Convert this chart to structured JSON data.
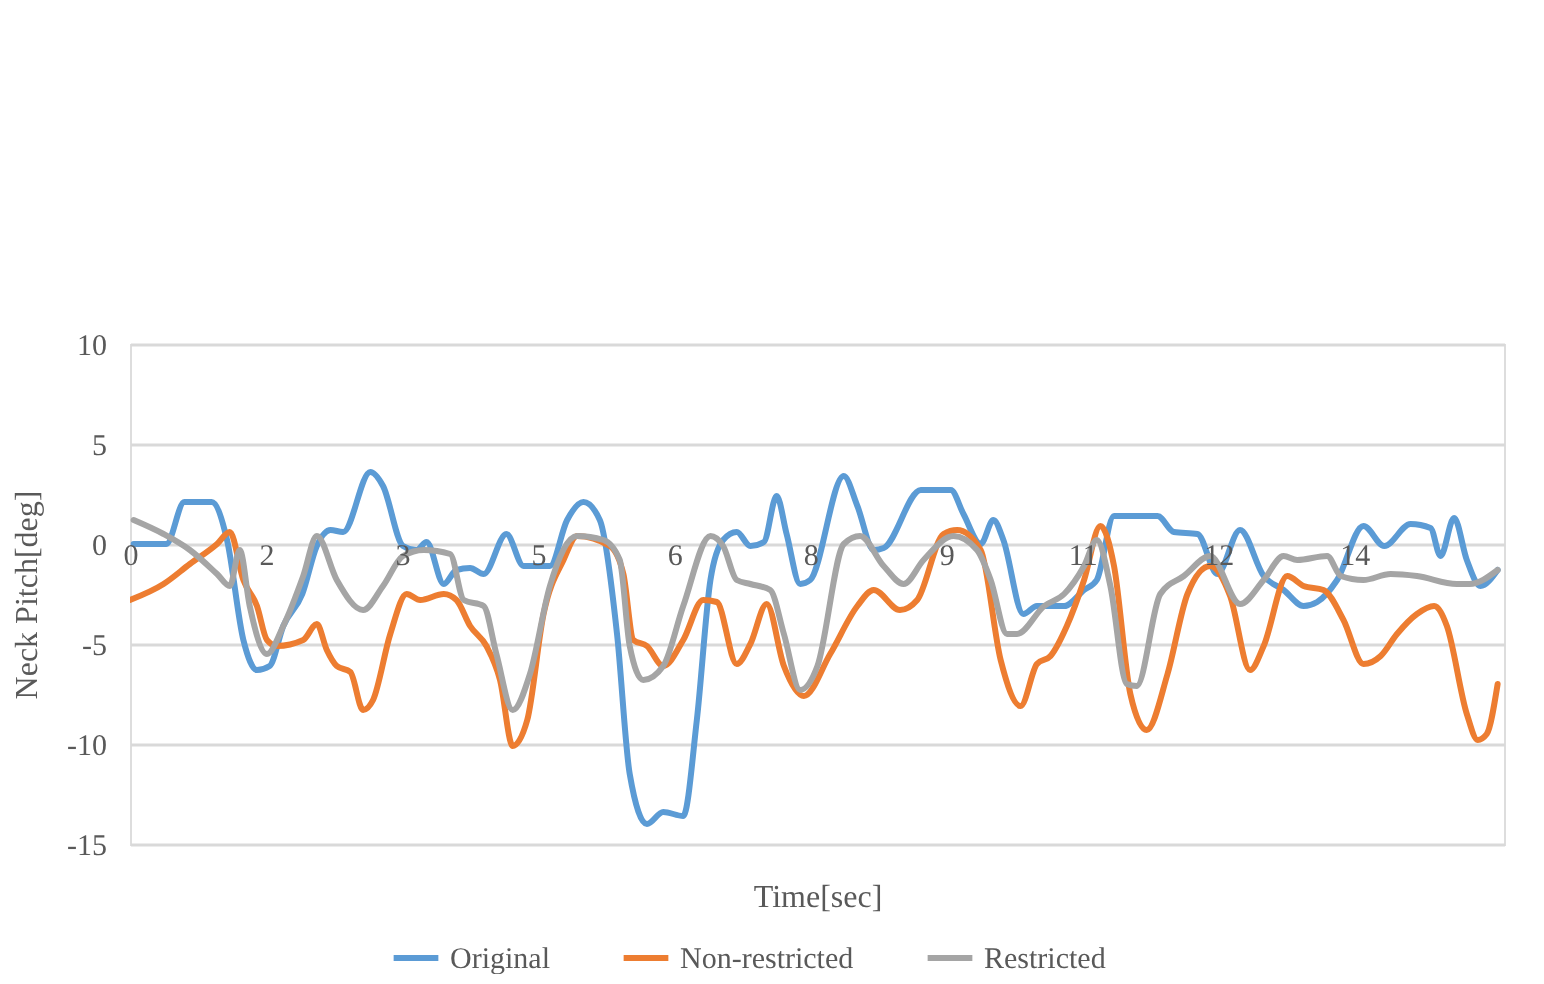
{
  "chart_data": {
    "type": "line",
    "xlabel": "Time[sec]",
    "ylabel": "Neck Pitch[deg]",
    "xlim": [
      0,
      15.15
    ],
    "ylim": [
      -15,
      10
    ],
    "xticks": [
      0,
      {
        "value": 1.5,
        "label": "2"
      },
      3,
      {
        "value": 4.5,
        "label": "5"
      },
      6,
      {
        "value": 7.5,
        "label": "8"
      },
      9,
      {
        "value": 10.5,
        "label": "11"
      },
      12,
      {
        "value": 13.5,
        "label": "14"
      }
    ],
    "yticks": [
      -15,
      -10,
      -5,
      0,
      5,
      10
    ],
    "grid": "y",
    "legend": "bottom",
    "line_style": "solid",
    "marker": "none",
    "series": [
      {
        "name": "Original",
        "color": "#5b9bd5",
        "x": [
          0.04,
          0.4,
          0.6,
          0.9,
          1.07,
          1.25,
          1.4,
          1.54,
          1.69,
          1.9,
          2.06,
          2.21,
          2.35,
          2.65,
          2.79,
          3.01,
          3.16,
          3.27,
          3.46,
          3.6,
          3.75,
          3.9,
          4.15,
          4.34,
          4.63,
          4.82,
          5.0,
          5.18,
          5.37,
          5.51,
          5.7,
          5.88,
          6.1,
          6.25,
          6.4,
          6.54,
          6.69,
          6.84,
          6.99,
          7.13,
          7.24,
          7.39,
          7.5,
          7.87,
          8.02,
          8.2,
          8.31,
          8.72,
          9.05,
          9.19,
          9.38,
          9.52,
          9.63,
          9.85,
          10.0,
          10.3,
          10.52,
          10.66,
          10.85,
          11.33,
          11.51,
          11.77,
          11.99,
          12.24,
          12.5,
          12.72,
          12.94,
          13.09,
          13.31,
          13.6,
          13.83,
          14.12,
          14.34,
          14.45,
          14.6,
          14.74,
          14.89,
          15.08
        ],
        "values": [
          0,
          0,
          2.1,
          2.1,
          0.2,
          -4.8,
          -6.3,
          -6.1,
          -4.1,
          -2.5,
          -0.1,
          0.7,
          0.6,
          3.6,
          2.9,
          -0.1,
          -0.3,
          0.1,
          -2,
          -1.3,
          -1.2,
          -1.5,
          0.5,
          -1.1,
          -1.1,
          1.2,
          2.1,
          1.2,
          -4.5,
          -11.5,
          -14,
          -13.4,
          -13.6,
          -8.8,
          -1.8,
          0.2,
          0.6,
          -0.1,
          0.1,
          2.4,
          0.5,
          -2,
          -1.8,
          3.4,
          1.9,
          -0.3,
          -0.2,
          2.7,
          2.7,
          1.5,
          0,
          1.2,
          0.2,
          -3.5,
          -3.1,
          -3.1,
          -2.3,
          -1.8,
          1.4,
          1.4,
          0.6,
          0.5,
          -1.5,
          0.7,
          -1.6,
          -2.3,
          -3.1,
          -2.9,
          -1.8,
          0.9,
          -0.1,
          1,
          0.8,
          -0.6,
          1.3,
          -0.8,
          -2.1,
          -1.3
        ]
      },
      {
        "name": "Non-restricted",
        "color": "#ed7d31",
        "x": [
          0,
          0.37,
          0.66,
          0.96,
          1.1,
          1.25,
          1.4,
          1.51,
          1.62,
          1.91,
          2.06,
          2.17,
          2.28,
          2.43,
          2.57,
          2.68,
          2.87,
          3.05,
          3.2,
          3.46,
          3.6,
          3.75,
          3.93,
          4.08,
          4.22,
          4.38,
          4.56,
          4.78,
          4.93,
          5.29,
          5.44,
          5.55,
          5.7,
          5.88,
          6.1,
          6.32,
          6.47,
          6.69,
          6.84,
          7.02,
          7.21,
          7.43,
          7.72,
          8.02,
          8.2,
          8.49,
          8.68,
          8.97,
          9.12,
          9.38,
          9.6,
          9.82,
          10.0,
          10.15,
          10.33,
          10.52,
          10.7,
          10.85,
          11.03,
          11.21,
          11.44,
          11.66,
          11.91,
          12.13,
          12.35,
          12.5,
          12.76,
          12.94,
          13.16,
          13.38,
          13.6,
          13.79,
          13.97,
          14.19,
          14.38,
          14.52,
          14.74,
          14.86,
          14.96,
          15.08
        ],
        "values": [
          -2.8,
          -2,
          -1,
          0,
          0.6,
          -1.8,
          -3.1,
          -4.8,
          -5.1,
          -4.8,
          -4,
          -5.3,
          -6.1,
          -6.4,
          -8.3,
          -7.8,
          -4.5,
          -2.5,
          -2.8,
          -2.5,
          -2.8,
          -4.1,
          -5.1,
          -6.8,
          -10.1,
          -8.8,
          -3.5,
          -0.8,
          0.4,
          -0.1,
          -1.5,
          -4.8,
          -5.1,
          -6.1,
          -4.8,
          -2.8,
          -2.9,
          -6,
          -5,
          -3,
          -6.1,
          -7.6,
          -5.5,
          -3.1,
          -2.3,
          -3.3,
          -2.8,
          0.5,
          0.7,
          -0.3,
          -5.8,
          -8.1,
          -6,
          -5.6,
          -4.1,
          -1.8,
          0.9,
          -1.1,
          -7.5,
          -9.3,
          -6.5,
          -2.5,
          -1.1,
          -2.6,
          -6.3,
          -5.1,
          -1.6,
          -2.1,
          -2.3,
          -3.8,
          -6,
          -5.6,
          -4.5,
          -3.5,
          -3.1,
          -4.1,
          -8.5,
          -9.8,
          -9.5,
          -7
        ]
      },
      {
        "name": "Restricted",
        "color": "#a5a5a5",
        "x": [
          0.04,
          0.37,
          0.66,
          0.96,
          1.1,
          1.21,
          1.32,
          1.51,
          1.69,
          1.91,
          2.06,
          2.28,
          2.57,
          2.79,
          3.01,
          3.24,
          3.53,
          3.68,
          3.9,
          4.04,
          4.22,
          4.41,
          4.63,
          4.93,
          5.22,
          5.4,
          5.51,
          5.66,
          5.88,
          6.1,
          6.4,
          6.54,
          6.69,
          6.84,
          7.06,
          7.21,
          7.39,
          7.58,
          7.87,
          8.05,
          8.31,
          8.53,
          8.75,
          9.08,
          9.34,
          9.49,
          9.67,
          9.78,
          10.08,
          10.3,
          10.52,
          10.66,
          10.81,
          10.99,
          11.1,
          11.36,
          11.62,
          11.91,
          12.24,
          12.5,
          12.72,
          12.87,
          13.2,
          13.35,
          13.6,
          13.9,
          14.19,
          14.63,
          14.77,
          15.08
        ],
        "values": [
          1.2,
          0.5,
          -0.3,
          -1.5,
          -2.1,
          -0.3,
          -3.1,
          -5.5,
          -4.1,
          -1.6,
          0.4,
          -1.8,
          -3.3,
          -2.1,
          -0.6,
          -0.3,
          -0.5,
          -2.8,
          -3.1,
          -5.5,
          -8.3,
          -6.5,
          -2.1,
          0.4,
          0.2,
          -0.8,
          -5.1,
          -6.8,
          -6.1,
          -3.1,
          0.4,
          -0.1,
          -1.8,
          -2,
          -2.3,
          -4.5,
          -7.3,
          -6.1,
          0,
          0.4,
          -1.1,
          -2,
          -0.8,
          0.4,
          -0.3,
          -1.8,
          -4.5,
          -4.5,
          -3.1,
          -2.5,
          -1.1,
          0.2,
          -2.1,
          -7,
          -7.1,
          -2.5,
          -1.6,
          -0.6,
          -3,
          -1.8,
          -0.6,
          -0.8,
          -0.6,
          -1.6,
          -1.8,
          -1.5,
          -1.6,
          -2,
          -2,
          -1.3
        ]
      }
    ]
  }
}
